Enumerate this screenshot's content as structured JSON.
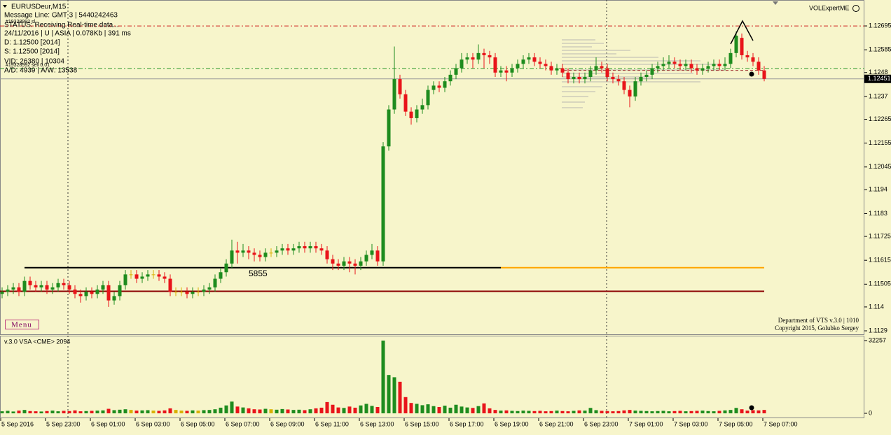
{
  "chart_data": {
    "type": "candlestick",
    "symbol": "EURUSDeur,M15",
    "indicator_name": "VOLExpertME",
    "info_lines": [
      "Message Line: GMT 3 | 5440242463",
      "#19328992 sl",
      "STATUS: Receiving Real-time data...",
      "24/11/2016 | U | ASIA | 0.078Kb | 391 ms",
      "D: 1.12500  [2014]",
      "S: 1.12500  [2014]",
      "VID: 26380 | 10304",
      "#19328992 sell 0.01",
      "A/D: 4939 | A/W: 13538"
    ],
    "menu": "Menu",
    "credits": [
      "Department of VTS  v.3.0 | 1010",
      "Copyright 2015, Golubko Sergey"
    ],
    "up_color": "#1e8c1e",
    "down_color": "#e8141a",
    "flat_color": "#d8b000",
    "ylim": [
      1.11274,
      1.12808
    ],
    "yticks": [
      1.12695,
      1.12585,
      1.1248,
      1.1237,
      1.12265,
      1.12155,
      1.12045,
      1.1194,
      1.1183,
      1.11725,
      1.11615,
      1.11505,
      1.114,
      1.1129
    ],
    "last_price": 1.12451,
    "levels": [
      {
        "value": 1.11581,
        "color": "#000000",
        "label": "5855"
      },
      {
        "value": 1.11581,
        "color": "#ffa500"
      },
      {
        "value": 1.11472,
        "color": "#8b0000"
      },
      {
        "value": 1.12695,
        "color": "#d02020"
      },
      {
        "value": 1.12499,
        "color": "#2e9a2e"
      },
      {
        "value": 1.1249,
        "color": "#a03030"
      }
    ],
    "categories": [
      "5 Sep 2016",
      null,
      null,
      null,
      null,
      null,
      null,
      null,
      "5 Sep 23:00",
      null,
      null,
      null,
      null,
      null,
      null,
      null,
      "6 Sep 01:00",
      null,
      null,
      null,
      null,
      null,
      null,
      null,
      "6 Sep 03:00",
      null,
      null,
      null,
      null,
      null,
      null,
      null,
      "6 Sep 05:00",
      null,
      null,
      null,
      null,
      null,
      null,
      null,
      "6 Sep 07:00",
      null,
      null,
      null,
      null,
      null,
      null,
      null,
      "6 Sep 09:00",
      null,
      null,
      null,
      null,
      null,
      null,
      null,
      "6 Sep 11:00",
      null,
      null,
      null,
      null,
      null,
      null,
      null,
      "6 Sep 13:00",
      null,
      null,
      null,
      null,
      null,
      null,
      null,
      "6 Sep 15:00",
      null,
      null,
      null,
      null,
      null,
      null,
      null,
      "6 Sep 17:00",
      null,
      null,
      null,
      null,
      null,
      null,
      null,
      "6 Sep 19:00",
      null,
      null,
      null,
      null,
      null,
      null,
      null,
      "6 Sep 21:00",
      null,
      null,
      null,
      null,
      null,
      null,
      null,
      "6 Sep 23:00",
      null,
      null,
      null,
      null,
      null,
      null,
      null,
      "7 Sep 01:00",
      null,
      null,
      null,
      null,
      null,
      null,
      null,
      "7 Sep 03:00",
      null,
      null,
      null,
      null,
      null,
      null,
      null,
      "7 Sep 05:00",
      null,
      null,
      null,
      null,
      null,
      null,
      null,
      "7 Sep 07:00"
    ],
    "ohlc": [
      [
        1.1146,
        1.1149,
        1.1144,
        1.1147
      ],
      [
        1.1147,
        1.115,
        1.1145,
        1.1148
      ],
      [
        1.1148,
        1.1151,
        1.1146,
        1.1149
      ],
      [
        1.1149,
        1.1151,
        1.1145,
        1.1147
      ],
      [
        1.1147,
        1.1154,
        1.1145,
        1.1152
      ],
      [
        1.1152,
        1.1154,
        1.1148,
        1.115
      ],
      [
        1.115,
        1.1152,
        1.1147,
        1.1149
      ],
      [
        1.1149,
        1.1152,
        1.1147,
        1.115
      ],
      [
        1.115,
        1.1152,
        1.1146,
        1.1148
      ],
      [
        1.1148,
        1.1151,
        1.1146,
        1.1149
      ],
      [
        1.1149,
        1.1153,
        1.1147,
        1.1151
      ],
      [
        1.1151,
        1.1153,
        1.1148,
        1.115
      ],
      [
        1.115,
        1.1152,
        1.1146,
        1.1148
      ],
      [
        1.1148,
        1.115,
        1.1144,
        1.1146
      ],
      [
        1.1146,
        1.1148,
        1.1142,
        1.1145
      ],
      [
        1.1145,
        1.1149,
        1.1143,
        1.1147
      ],
      [
        1.1147,
        1.1149,
        1.1144,
        1.1146
      ],
      [
        1.1146,
        1.115,
        1.1144,
        1.1148
      ],
      [
        1.1148,
        1.1152,
        1.1146,
        1.115
      ],
      [
        1.115,
        1.1152,
        1.114,
        1.1143
      ],
      [
        1.1143,
        1.1147,
        1.1141,
        1.1145
      ],
      [
        1.1145,
        1.1152,
        1.1143,
        1.115
      ],
      [
        1.115,
        1.1157,
        1.1148,
        1.1155
      ],
      [
        1.1155,
        1.1157,
        1.1153,
        1.1155
      ],
      [
        1.1155,
        1.1157,
        1.1151,
        1.1153
      ],
      [
        1.1153,
        1.1156,
        1.1151,
        1.1154
      ],
      [
        1.1154,
        1.1157,
        1.1152,
        1.1155
      ],
      [
        1.1155,
        1.1157,
        1.1153,
        1.1155
      ],
      [
        1.1155,
        1.1157,
        1.1152,
        1.1154
      ],
      [
        1.1154,
        1.1156,
        1.1151,
        1.1153
      ],
      [
        1.1153,
        1.1155,
        1.1145,
        1.1147
      ],
      [
        1.1147,
        1.1149,
        1.1145,
        1.1147
      ],
      [
        1.1147,
        1.1149,
        1.1145,
        1.1147
      ],
      [
        1.1147,
        1.1149,
        1.1144,
        1.1146
      ],
      [
        1.1146,
        1.1149,
        1.1144,
        1.1147
      ],
      [
        1.1147,
        1.1149,
        1.1145,
        1.1147
      ],
      [
        1.1147,
        1.115,
        1.1145,
        1.1148
      ],
      [
        1.1148,
        1.1151,
        1.1146,
        1.1149
      ],
      [
        1.1149,
        1.1155,
        1.1147,
        1.1153
      ],
      [
        1.1153,
        1.1158,
        1.1151,
        1.1156
      ],
      [
        1.1156,
        1.1162,
        1.1154,
        1.116
      ],
      [
        1.116,
        1.1171,
        1.1158,
        1.1166
      ],
      [
        1.1166,
        1.117,
        1.116,
        1.1165
      ],
      [
        1.1165,
        1.1169,
        1.1163,
        1.1166
      ],
      [
        1.1166,
        1.1168,
        1.1162,
        1.1165
      ],
      [
        1.1165,
        1.1167,
        1.1161,
        1.1164
      ],
      [
        1.1164,
        1.1166,
        1.1161,
        1.1163
      ],
      [
        1.1163,
        1.1167,
        1.1161,
        1.1165
      ],
      [
        1.1165,
        1.1167,
        1.1163,
        1.1165
      ],
      [
        1.1165,
        1.1168,
        1.1163,
        1.1166
      ],
      [
        1.1166,
        1.1169,
        1.1164,
        1.1167
      ],
      [
        1.1167,
        1.1169,
        1.1164,
        1.1166
      ],
      [
        1.1166,
        1.1169,
        1.1164,
        1.1167
      ],
      [
        1.1167,
        1.117,
        1.1165,
        1.1168
      ],
      [
        1.1168,
        1.117,
        1.1165,
        1.1167
      ],
      [
        1.1167,
        1.117,
        1.1165,
        1.1168
      ],
      [
        1.1168,
        1.117,
        1.1165,
        1.1167
      ],
      [
        1.1167,
        1.1169,
        1.1164,
        1.1166
      ],
      [
        1.1166,
        1.1168,
        1.116,
        1.1162
      ],
      [
        1.1162,
        1.1164,
        1.1157,
        1.116
      ],
      [
        1.116,
        1.1162,
        1.1157,
        1.1159
      ],
      [
        1.1159,
        1.1163,
        1.1157,
        1.1161
      ],
      [
        1.1161,
        1.1163,
        1.1156,
        1.116
      ],
      [
        1.116,
        1.1162,
        1.1155,
        1.1159
      ],
      [
        1.1159,
        1.1163,
        1.1157,
        1.1161
      ],
      [
        1.1161,
        1.1166,
        1.1159,
        1.1164
      ],
      [
        1.1164,
        1.1169,
        1.1162,
        1.1166
      ],
      [
        1.1166,
        1.1168,
        1.1159,
        1.1161
      ],
      [
        1.1161,
        1.1216,
        1.1159,
        1.1214
      ],
      [
        1.1214,
        1.1233,
        1.1212,
        1.1231
      ],
      [
        1.1231,
        1.126,
        1.1229,
        1.1245
      ],
      [
        1.1245,
        1.1247,
        1.1236,
        1.1238
      ],
      [
        1.1238,
        1.124,
        1.1228,
        1.123
      ],
      [
        1.123,
        1.1232,
        1.1224,
        1.1227
      ],
      [
        1.1227,
        1.1233,
        1.1225,
        1.1231
      ],
      [
        1.1231,
        1.1236,
        1.1229,
        1.1233
      ],
      [
        1.1233,
        1.1242,
        1.1231,
        1.124
      ],
      [
        1.124,
        1.1244,
        1.1238,
        1.1242
      ],
      [
        1.1242,
        1.1244,
        1.1239,
        1.1241
      ],
      [
        1.1241,
        1.1246,
        1.1239,
        1.1244
      ],
      [
        1.1244,
        1.1249,
        1.1242,
        1.1247
      ],
      [
        1.1247,
        1.1252,
        1.1245,
        1.125
      ],
      [
        1.125,
        1.1257,
        1.1248,
        1.1254
      ],
      [
        1.1254,
        1.1257,
        1.1252,
        1.1255
      ],
      [
        1.1255,
        1.1257,
        1.125,
        1.1254
      ],
      [
        1.1254,
        1.1261,
        1.1252,
        1.1257
      ],
      [
        1.1257,
        1.1259,
        1.125,
        1.1256
      ],
      [
        1.1256,
        1.1258,
        1.1252,
        1.1255
      ],
      [
        1.1255,
        1.1257,
        1.1246,
        1.1248
      ],
      [
        1.1248,
        1.1251,
        1.1246,
        1.1249
      ],
      [
        1.1249,
        1.1251,
        1.1244,
        1.1248
      ],
      [
        1.1248,
        1.1252,
        1.1246,
        1.125
      ],
      [
        1.125,
        1.1254,
        1.1248,
        1.1252
      ],
      [
        1.1252,
        1.1256,
        1.125,
        1.1254
      ],
      [
        1.1254,
        1.1257,
        1.1252,
        1.1255
      ],
      [
        1.1255,
        1.1257,
        1.1251,
        1.1253
      ],
      [
        1.1253,
        1.1255,
        1.125,
        1.1252
      ],
      [
        1.1252,
        1.1254,
        1.1249,
        1.1251
      ],
      [
        1.1251,
        1.1253,
        1.1247,
        1.1249
      ],
      [
        1.1249,
        1.1252,
        1.1247,
        1.125
      ],
      [
        1.125,
        1.1252,
        1.1246,
        1.1248
      ],
      [
        1.1248,
        1.125,
        1.1243,
        1.1245
      ],
      [
        1.1245,
        1.1248,
        1.1243,
        1.1246
      ],
      [
        1.1246,
        1.1248,
        1.1243,
        1.1245
      ],
      [
        1.1245,
        1.1248,
        1.1243,
        1.1246
      ],
      [
        1.1246,
        1.1251,
        1.1244,
        1.1249
      ],
      [
        1.1249,
        1.1255,
        1.1247,
        1.1251
      ],
      [
        1.1251,
        1.1253,
        1.1248,
        1.125
      ],
      [
        1.125,
        1.1252,
        1.1244,
        1.1246
      ],
      [
        1.1246,
        1.1248,
        1.1243,
        1.1245
      ],
      [
        1.1245,
        1.1247,
        1.1242,
        1.1244
      ],
      [
        1.1244,
        1.1246,
        1.1238,
        1.124
      ],
      [
        1.124,
        1.1242,
        1.1232,
        1.1237
      ],
      [
        1.1237,
        1.1246,
        1.1235,
        1.1244
      ],
      [
        1.1244,
        1.1248,
        1.1242,
        1.1246
      ],
      [
        1.1246,
        1.1249,
        1.1244,
        1.1247
      ],
      [
        1.1247,
        1.1252,
        1.1245,
        1.125
      ],
      [
        1.125,
        1.1253,
        1.1248,
        1.1251
      ],
      [
        1.1251,
        1.1255,
        1.1249,
        1.1252
      ],
      [
        1.1252,
        1.1256,
        1.125,
        1.1253
      ],
      [
        1.1253,
        1.1255,
        1.125,
        1.1252
      ],
      [
        1.1252,
        1.1254,
        1.1249,
        1.1251
      ],
      [
        1.1251,
        1.1254,
        1.1249,
        1.1252
      ],
      [
        1.1252,
        1.1254,
        1.1248,
        1.125
      ],
      [
        1.125,
        1.1252,
        1.1247,
        1.1249
      ],
      [
        1.1249,
        1.1252,
        1.1247,
        1.125
      ],
      [
        1.125,
        1.1253,
        1.1248,
        1.1251
      ],
      [
        1.1251,
        1.1254,
        1.1249,
        1.1252
      ],
      [
        1.1252,
        1.1254,
        1.1249,
        1.1251
      ],
      [
        1.1251,
        1.1255,
        1.1249,
        1.1252
      ],
      [
        1.1252,
        1.1259,
        1.125,
        1.1257
      ],
      [
        1.1257,
        1.1267,
        1.1255,
        1.1265
      ],
      [
        1.1264,
        1.1266,
        1.1254,
        1.1256
      ],
      [
        1.1256,
        1.1258,
        1.1253,
        1.1255
      ],
      [
        1.1255,
        1.1257,
        1.1251,
        1.1253
      ],
      [
        1.1253,
        1.1255,
        1.1247,
        1.1249
      ],
      [
        1.1249,
        1.1251,
        1.1244,
        1.12451
      ]
    ],
    "volume": {
      "label": "v.3.0 VSA <CME> 2094",
      "vlim": [
        0,
        32257
      ],
      "vticks": [
        32257,
        0
      ],
      "values": [
        900,
        1100,
        800,
        1200,
        1500,
        1000,
        900,
        800,
        1000,
        1200,
        900,
        1100,
        1000,
        1300,
        900,
        1000,
        1100,
        1200,
        1300,
        2000,
        1400,
        1600,
        1800,
        1500,
        1200,
        1300,
        1400,
        1200,
        1100,
        1300,
        2200,
        1500,
        1200,
        1100,
        1300,
        1200,
        1400,
        1500,
        1800,
        2500,
        3500,
        5200,
        3000,
        2600,
        2200,
        1800,
        1700,
        2000,
        1800,
        1600,
        1900,
        1700,
        1500,
        1600,
        1400,
        1800,
        2200,
        2500,
        5000,
        3800,
        2600,
        2400,
        3000,
        2500,
        3500,
        4200,
        3300,
        2800,
        32257,
        17000,
        16000,
        14000,
        7200,
        4600,
        4200,
        3600,
        4000,
        3200,
        2800,
        3400,
        2500,
        3800,
        3000,
        2600,
        2400,
        3200,
        4400,
        2200,
        1500,
        1200,
        1300,
        1100,
        1000,
        1200,
        1100,
        1000,
        1100,
        900,
        1000,
        1200,
        1000,
        900,
        1100,
        1300,
        1200,
        2400,
        1400,
        1100,
        1000,
        900,
        1000,
        1300,
        1500,
        1200,
        1100,
        1000,
        900,
        1000,
        1100,
        900,
        1000,
        1100,
        900,
        1000,
        1100,
        1200,
        1000,
        900,
        1100,
        1300,
        1500,
        2400,
        1800,
        1200,
        1400,
        1300,
        1500
      ]
    }
  }
}
